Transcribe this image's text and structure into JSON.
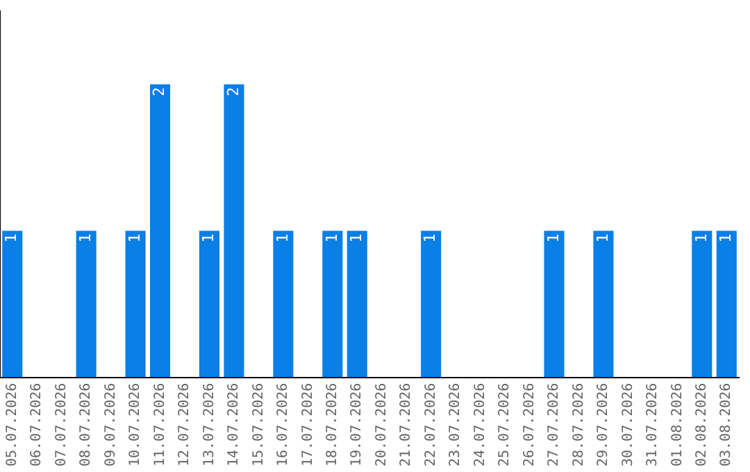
{
  "chart_data": {
    "type": "bar",
    "categories": [
      "05.07.2026",
      "06.07.2026",
      "07.07.2026",
      "08.07.2026",
      "09.07.2026",
      "10.07.2026",
      "11.07.2026",
      "12.07.2026",
      "13.07.2026",
      "14.07.2026",
      "15.07.2026",
      "16.07.2026",
      "17.07.2026",
      "18.07.2026",
      "19.07.2026",
      "20.07.2026",
      "21.07.2026",
      "22.07.2026",
      "23.07.2026",
      "24.07.2026",
      "25.07.2026",
      "26.07.2026",
      "27.07.2026",
      "28.07.2026",
      "29.07.2026",
      "30.07.2026",
      "31.07.2026",
      "01.08.2026",
      "02.08.2026",
      "03.08.2026"
    ],
    "values": [
      1,
      0,
      0,
      1,
      0,
      1,
      2,
      0,
      1,
      2,
      0,
      1,
      0,
      1,
      1,
      0,
      0,
      1,
      0,
      0,
      0,
      0,
      1,
      0,
      1,
      0,
      0,
      0,
      1,
      1
    ],
    "value_labels": [
      "1",
      null,
      null,
      "1",
      null,
      "1",
      "2",
      null,
      "1",
      "2",
      null,
      "1",
      null,
      "1",
      "1",
      null,
      null,
      "1",
      null,
      null,
      null,
      null,
      "1",
      null,
      "1",
      null,
      null,
      null,
      "1",
      "1"
    ],
    "color": "#0a7fe6",
    "tick_labels": "x",
    "grid": false
  }
}
